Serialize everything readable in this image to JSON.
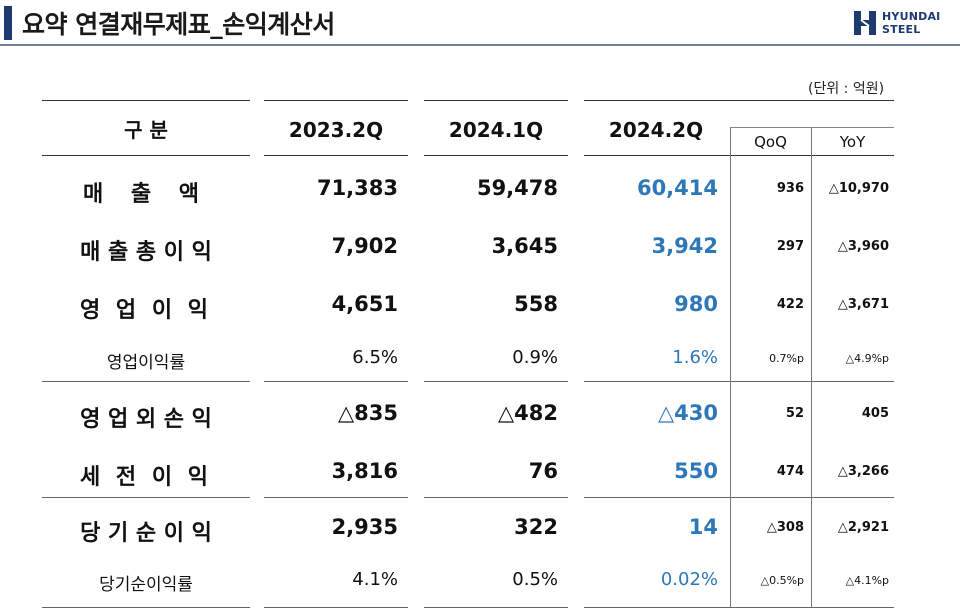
{
  "header": {
    "title": "요약 연결재무제표_손익계산서",
    "logo_line1": "HYUNDAI",
    "logo_line2": "STEEL",
    "unit": "(단위 : 억원)"
  },
  "table": {
    "columns": {
      "category": "구 분",
      "c1": "2023.2Q",
      "c2": "2024.1Q",
      "c3": "2024.2Q",
      "qoq": "QoQ",
      "yoy": "YoY"
    },
    "rows": [
      {
        "label": "매  출  액",
        "c1": "71,383",
        "c2": "59,478",
        "c3": "60,414",
        "qoq": "936",
        "yoy": "△10,970"
      },
      {
        "label": "매 출 총 이 익",
        "c1": "7,902",
        "c2": "3,645",
        "c3": "3,942",
        "qoq": "297",
        "yoy": "△3,960"
      },
      {
        "label": "영 업 이 익",
        "c1": "4,651",
        "c2": "558",
        "c3": "980",
        "qoq": "422",
        "yoy": "△3,671"
      },
      {
        "label": "영업이익률",
        "c1": "6.5%",
        "c2": "0.9%",
        "c3": "1.6%",
        "qoq": "0.7%p",
        "yoy": "△4.9%p"
      },
      {
        "label": "영 업 외 손 익",
        "c1": "△835",
        "c2": "△482",
        "c3": "△430",
        "qoq": "52",
        "yoy": "405"
      },
      {
        "label": "세 전 이 익",
        "c1": "3,816",
        "c2": "76",
        "c3": "550",
        "qoq": "474",
        "yoy": "△3,266"
      },
      {
        "label": "당 기 순 이 익",
        "c1": "2,935",
        "c2": "322",
        "c3": "14",
        "qoq": "△308",
        "yoy": "△2,921"
      },
      {
        "label": "당기순이익률",
        "c1": "4.1%",
        "c2": "0.5%",
        "c3": "0.02%",
        "qoq": "△0.5%p",
        "yoy": "△4.1%p"
      }
    ]
  },
  "colors": {
    "accent": "#1e3a70",
    "current_period": "#2e78b8"
  }
}
